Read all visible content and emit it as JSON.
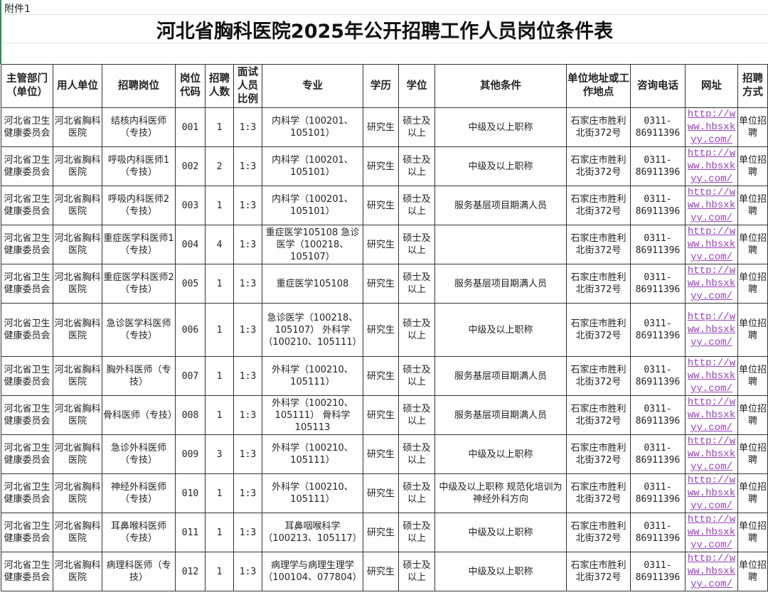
{
  "annex": "附件1",
  "title": "河北省胸科医院2025年公开招聘工作人员岗位条件表",
  "colors": {
    "link": "#9b3fbf",
    "border": "#333333"
  },
  "headers": [
    "主管部门（单位）",
    "用人单位",
    "招聘岗位",
    "岗位代码",
    "招聘人数",
    "面试人员比例",
    "专业",
    "学历",
    "学位",
    "其他条件",
    "单位地址或工作地点",
    "咨询电话",
    "网址",
    "招聘方式"
  ],
  "rows": [
    [
      "河北省卫生健康委员会",
      "河北省胸科医院",
      "结核内科医师（专技）",
      "001",
      "1",
      "1:3",
      "内科学（100201、105101）",
      "研究生",
      "硕士及以上",
      "中级及以上职称",
      "石家庄市胜利北街372号",
      "0311-86911396",
      "http://www.hbsxkyy.com/",
      "单位招聘"
    ],
    [
      "河北省卫生健康委员会",
      "河北省胸科医院",
      "呼吸内科医师1（专技）",
      "002",
      "2",
      "1:3",
      "内科学（100201、105101）",
      "研究生",
      "硕士及以上",
      "中级及以上职称",
      "石家庄市胜利北街372号",
      "0311-86911396",
      "http://www.hbsxkyy.com/",
      "单位招聘"
    ],
    [
      "河北省卫生健康委员会",
      "河北省胸科医院",
      "呼吸内科医师2（专技）",
      "003",
      "1",
      "1:3",
      "内科学（100201、105101）",
      "研究生",
      "硕士及以上",
      "服务基层项目期满人员",
      "石家庄市胜利北街372号",
      "0311-86911396",
      "http://www.hbsxkyy.com/",
      "单位招聘"
    ],
    [
      "河北省卫生健康委员会",
      "河北省胸科医院",
      "重症医学科医师1（专技）",
      "004",
      "4",
      "1:3",
      "重症医学105108 急诊医学（100218、105107）",
      "研究生",
      "硕士及以上",
      "",
      "石家庄市胜利北街372号",
      "0311-86911396",
      "http://www.hbsxkyy.com/",
      "单位招聘"
    ],
    [
      "河北省卫生健康委员会",
      "河北省胸科医院",
      "重症医学科医师2（专技）",
      "005",
      "1",
      "1:3",
      "重症医学105108",
      "研究生",
      "硕士及以上",
      "服务基层项目期满人员",
      "石家庄市胜利北街372号",
      "0311-86911396",
      "http://www.hbsxkyy.com/",
      "单位招聘"
    ],
    [
      "河北省卫生健康委员会",
      "河北省胸科医院",
      "急诊医学科医师（专技）",
      "006",
      "1",
      "1:3",
      "急诊医学（100218、105107） 外科学（100210、105111）",
      "研究生",
      "硕士及以上",
      "中级及以上职称",
      "石家庄市胜利北街372号",
      "0311-86911396",
      "http://www.hbsxkyy.com/",
      "单位招聘"
    ],
    [
      "河北省卫生健康委员会",
      "河北省胸科医院",
      "胸外科医师（专技）",
      "007",
      "1",
      "1:3",
      "外科学（100210、105111）",
      "研究生",
      "硕士及以上",
      "服务基层项目期满人员",
      "石家庄市胜利北街372号",
      "0311-86911396",
      "http://www.hbsxkyy.com/",
      "单位招聘"
    ],
    [
      "河北省卫生健康委员会",
      "河北省胸科医院",
      "骨科医师（专技）",
      "008",
      "1",
      "1:3",
      "外科学（100210、105111） 骨科学105113",
      "研究生",
      "硕士及以上",
      "服务基层项目期满人员",
      "石家庄市胜利北街372号",
      "0311-86911396",
      "http://www.hbsxkyy.com/",
      "单位招聘"
    ],
    [
      "河北省卫生健康委员会",
      "河北省胸科医院",
      "急诊外科医师（专技）",
      "009",
      "3",
      "1:3",
      "外科学（100210、105111）",
      "研究生",
      "硕士及以上",
      "中级及以上职称",
      "石家庄市胜利北街372号",
      "0311-86911396",
      "http://www.hbsxkyy.com/",
      "单位招聘"
    ],
    [
      "河北省卫生健康委员会",
      "河北省胸科医院",
      "神经外科医师（专技）",
      "010",
      "1",
      "1:3",
      "外科学（100210、105111）",
      "研究生",
      "硕士及以上",
      "中级及以上职称 规范化培训为神经外科方向",
      "石家庄市胜利北街372号",
      "0311-86911396",
      "http://www.hbsxkyy.com/",
      "单位招聘"
    ],
    [
      "河北省卫生健康委员会",
      "河北省胸科医院",
      "耳鼻喉科医师（专技）",
      "011",
      "1",
      "1:3",
      "耳鼻咽喉科学（100213、105117）",
      "研究生",
      "硕士及以上",
      "中级及以上职称",
      "石家庄市胜利北街372号",
      "0311-86911396",
      "http://www.hbsxkyy.com/",
      "单位招聘"
    ],
    [
      "河北省卫生健康委员会",
      "河北省胸科医院",
      "病理科医师（专技）",
      "012",
      "1",
      "1:3",
      "病理学与病理生理学（100104、077804）",
      "研究生",
      "硕士及以上",
      "中级及以上职称",
      "石家庄市胜利北街372号",
      "0311-86911396",
      "http://www.hbsxkyy.com/",
      "单位招聘"
    ]
  ]
}
